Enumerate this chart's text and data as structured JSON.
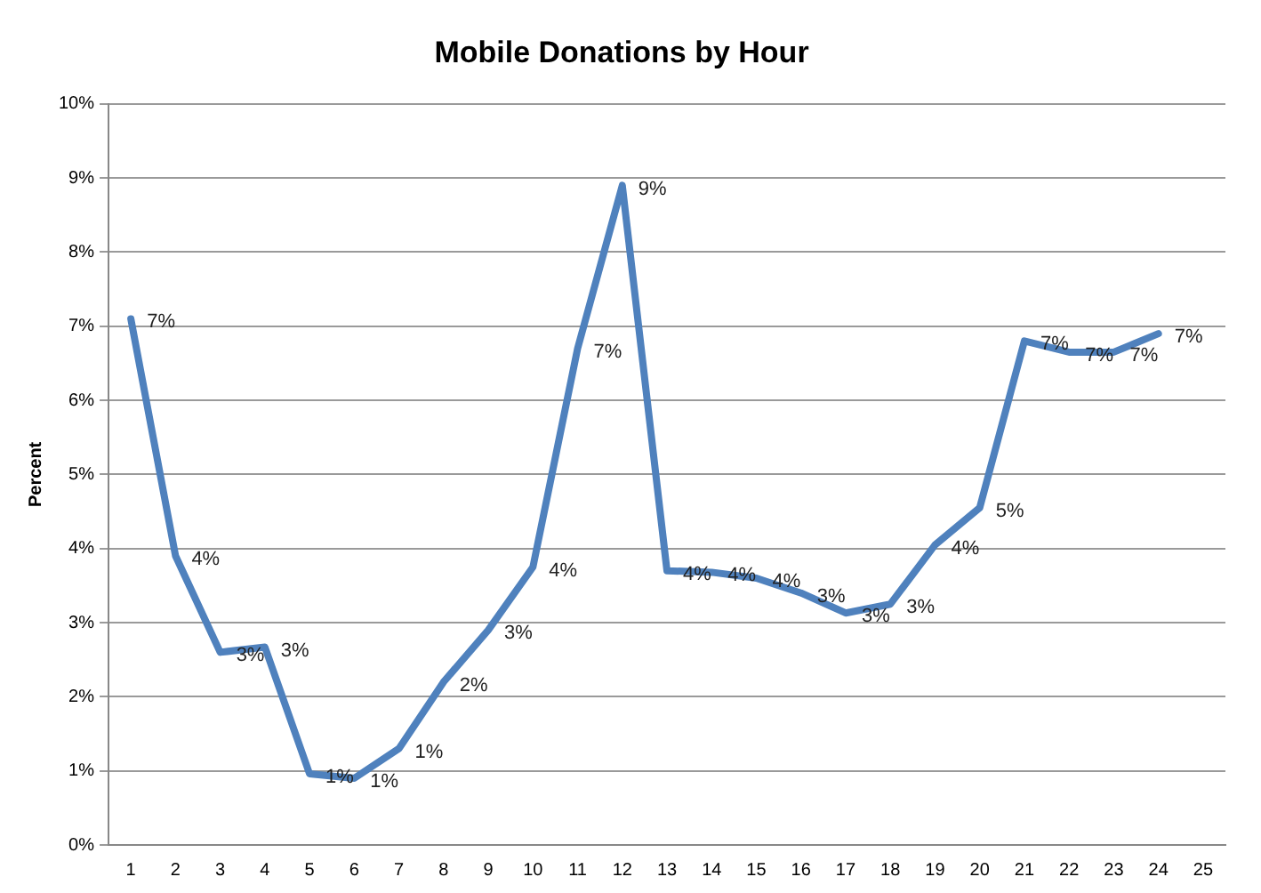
{
  "chart_data": {
    "type": "line",
    "title": "Mobile Donations by Hour",
    "ylabel": "Percent",
    "x": [
      1,
      2,
      3,
      4,
      5,
      6,
      7,
      8,
      9,
      10,
      11,
      12,
      13,
      14,
      15,
      16,
      17,
      18,
      19,
      20,
      21,
      22,
      23,
      24
    ],
    "series": [
      {
        "color": "#4f81bd",
        "values": [
          7.1,
          3.9,
          2.6,
          2.67,
          0.96,
          0.9,
          1.3,
          2.2,
          2.9,
          3.75,
          6.7,
          8.9,
          3.7,
          3.68,
          3.6,
          3.4,
          3.13,
          3.25,
          4.05,
          4.55,
          6.8,
          6.65,
          6.65,
          6.9
        ],
        "value_labels": [
          "7%",
          "4%",
          "3%",
          "3%",
          "1%",
          "1%",
          "1%",
          "2%",
          "3%",
          "4%",
          "7%",
          "9%",
          "4%",
          "4%",
          "4%",
          "3%",
          "3%",
          "3%",
          "4%",
          "5%",
          "7%",
          "7%",
          "7%",
          "7%"
        ]
      }
    ],
    "xlim": [
      0.5,
      25.5
    ],
    "xticks": [
      1,
      2,
      3,
      4,
      5,
      6,
      7,
      8,
      9,
      10,
      11,
      12,
      13,
      14,
      15,
      16,
      17,
      18,
      19,
      20,
      21,
      22,
      23,
      24,
      25
    ],
    "ylim": [
      0,
      10
    ],
    "yticks": [
      {
        "value": 0,
        "label": "0%"
      },
      {
        "value": 1,
        "label": "1%"
      },
      {
        "value": 2,
        "label": "2%"
      },
      {
        "value": 3,
        "label": "3%"
      },
      {
        "value": 4,
        "label": "4%"
      },
      {
        "value": 5,
        "label": "5%"
      },
      {
        "value": 6,
        "label": "6%"
      },
      {
        "value": 7,
        "label": "7%"
      },
      {
        "value": 8,
        "label": "8%"
      },
      {
        "value": 9,
        "label": "9%"
      },
      {
        "value": 10,
        "label": "10%"
      }
    ],
    "grid": "y",
    "legend": false,
    "marker": "none",
    "line_style": "solid"
  }
}
